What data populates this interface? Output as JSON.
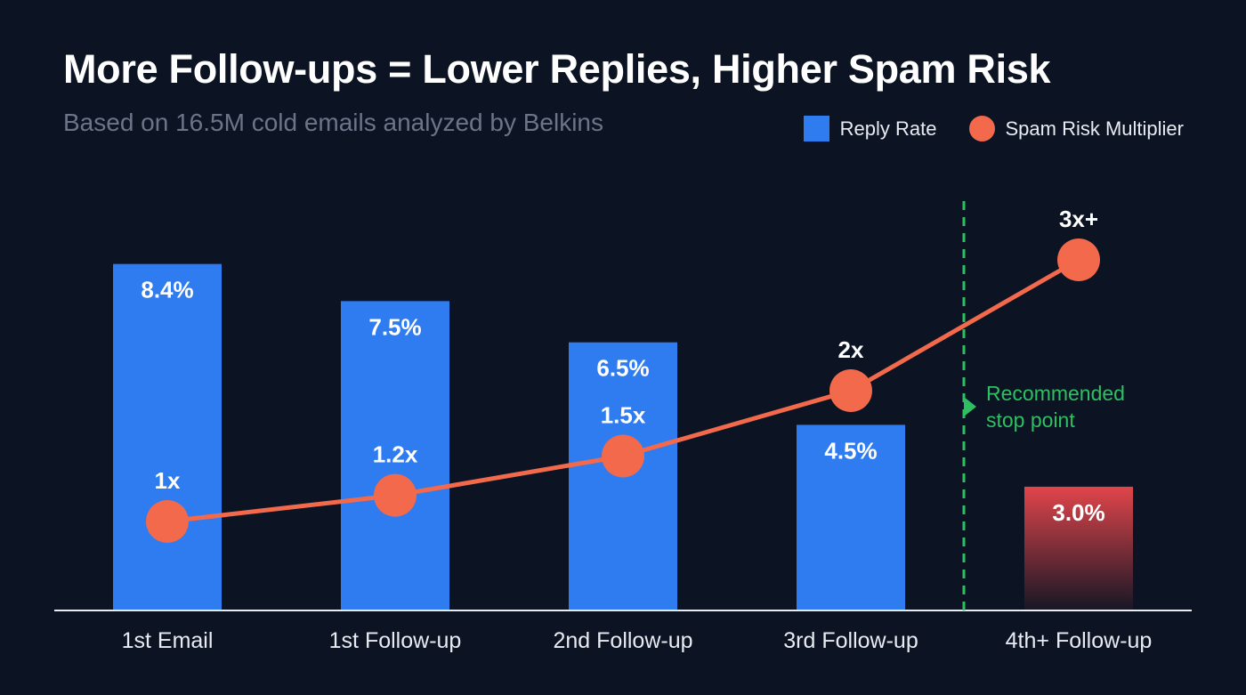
{
  "chart_data": {
    "type": "bar",
    "title": "More Follow-ups = Lower Replies, Higher Spam Risk",
    "subtitle": "Based on 16.5M cold emails analyzed by Belkins",
    "categories": [
      "1st Email",
      "1st Follow-up",
      "2nd Follow-up",
      "3rd Follow-up",
      "4th+ Follow-up"
    ],
    "series": [
      {
        "name": "Reply Rate",
        "type": "bar",
        "values": [
          8.4,
          7.5,
          6.5,
          4.5,
          3.0
        ],
        "labels": [
          "8.4%",
          "7.5%",
          "6.5%",
          "4.5%",
          "3.0%"
        ],
        "color": "#2f7bf0",
        "highlight_color": "#e0454a"
      },
      {
        "name": "Spam Risk Multiplier",
        "type": "line",
        "values": [
          1,
          1.2,
          1.5,
          2,
          3
        ],
        "labels": [
          "1x",
          "1.2x",
          "1.5x",
          "2x",
          "3x+"
        ],
        "color": "#f26a4b"
      }
    ],
    "ylim": [
      0,
      14.8
    ],
    "spam_ylim": [
      0,
      5
    ],
    "legend": "top-right",
    "grid": false,
    "annotation": {
      "text_line1": "Recommended",
      "text_line2": "stop point",
      "color": "#2fbf63"
    }
  }
}
